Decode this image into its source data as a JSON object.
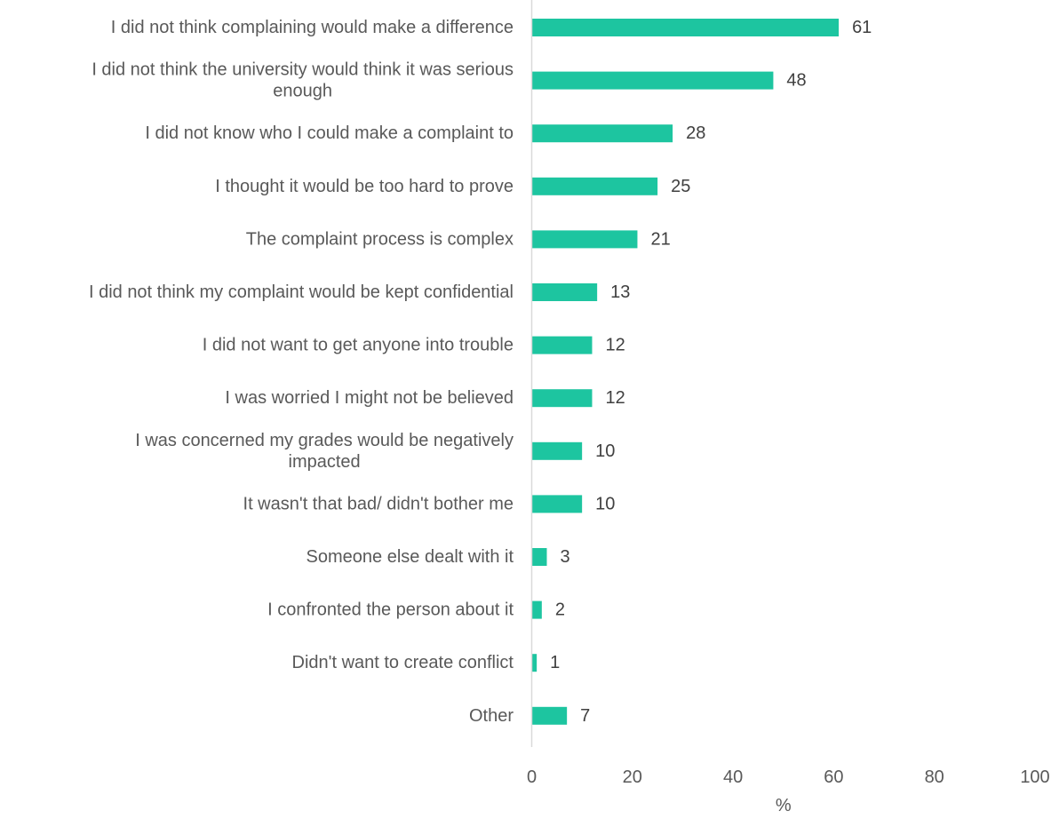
{
  "chart_data": {
    "type": "bar",
    "orientation": "horizontal",
    "categories": [
      [
        "I did not think complaining would make a difference"
      ],
      [
        "I did not think the university would think it was serious",
        "enough"
      ],
      [
        "I did not know who I could make a complaint to"
      ],
      [
        "I thought it would be too hard to prove"
      ],
      [
        "The complaint process is complex"
      ],
      [
        "I did not think my complaint would be kept confidential"
      ],
      [
        "I did not want to get anyone into trouble"
      ],
      [
        "I was worried I might not be believed"
      ],
      [
        "I was concerned my grades would be negatively",
        "impacted"
      ],
      [
        "It wasn't that bad/ didn't bother me"
      ],
      [
        "Someone else dealt with it"
      ],
      [
        "I confronted the person about it"
      ],
      [
        "Didn't want to create conflict"
      ],
      [
        "Other"
      ]
    ],
    "values": [
      61,
      48,
      28,
      25,
      21,
      13,
      12,
      12,
      10,
      10,
      3,
      2,
      1,
      7
    ],
    "value_labels": [
      "61",
      "48",
      "28",
      "25",
      "21",
      "13",
      "12",
      "12",
      "10",
      "10",
      "3",
      "2",
      "1",
      "7"
    ],
    "xlim": [
      0,
      100
    ],
    "xticks": [
      0,
      20,
      40,
      60,
      80,
      100
    ],
    "xlabel": "%",
    "ylabel": "",
    "title": "",
    "grid": false,
    "legend": "none",
    "bar_color": "#1dc5a0",
    "axis_color": "#d9d9d9"
  }
}
